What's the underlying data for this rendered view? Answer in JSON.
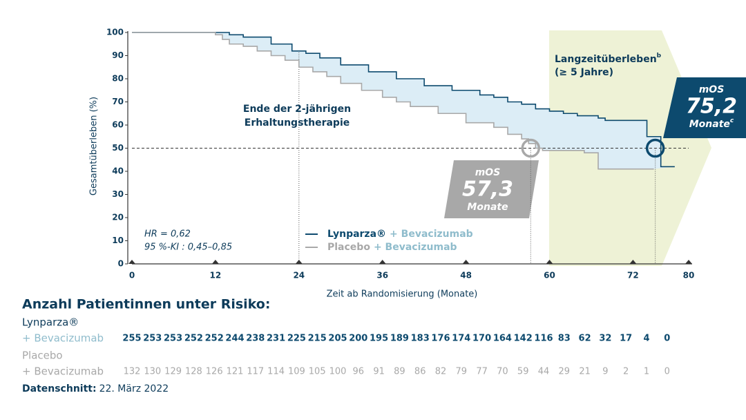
{
  "chart_data": {
    "type": "step",
    "y_label": "Gesamtüberleben (%)",
    "x_label": "Zeit ab Randomisierung (Monate)",
    "xlim": [
      0,
      80
    ],
    "xticks": [
      0,
      12,
      24,
      36,
      48,
      60,
      72,
      80
    ],
    "ylim": [
      0,
      100
    ],
    "yticks": [
      0,
      10,
      20,
      30,
      40,
      50,
      60,
      70,
      80,
      90,
      100
    ],
    "series": [
      {
        "name": "Lynparza®",
        "legend_suffix": "+ Bevacizumab",
        "color": "#0d4a6e",
        "x": [
          0,
          12,
          14,
          16,
          20,
          23,
          25,
          27,
          30,
          34,
          38,
          42,
          46,
          50,
          52,
          54,
          56,
          58,
          60,
          62,
          64,
          67,
          68,
          74,
          76,
          78
        ],
        "values": [
          100,
          100,
          99,
          98,
          95,
          92,
          91,
          89,
          86,
          83,
          80,
          77,
          75,
          73,
          72,
          70,
          69,
          67,
          66,
          65,
          64,
          63,
          62,
          55,
          42,
          42
        ]
      },
      {
        "name": "Placebo",
        "legend_suffix": "+ Bevacizumab",
        "color": "#a8a8a8",
        "x": [
          0,
          12,
          13,
          14,
          16,
          18,
          20,
          22,
          24,
          26,
          28,
          30,
          33,
          36,
          38,
          40,
          44,
          48,
          52,
          54,
          56,
          57,
          58,
          59,
          65,
          67,
          75
        ],
        "values": [
          100,
          99,
          97,
          95,
          94,
          92,
          90,
          88,
          85,
          83,
          81,
          78,
          75,
          72,
          70,
          68,
          65,
          61,
          59,
          56,
          54,
          52,
          50,
          49,
          48,
          41,
          41
        ]
      }
    ],
    "reference_line": 50,
    "annotations": {
      "maintenance_end": {
        "x": 24,
        "lines": [
          "Ende der 2-jährigen",
          "Erhaltungstherapie"
        ]
      },
      "long_term": {
        "text": "Langzeitüberleben",
        "sup": "b",
        "sub": "(≥ 5 Jahre)"
      },
      "hr": "HR = 0,62",
      "ci": "95 %-KI : 0,45–0,85",
      "mos": [
        {
          "heading": "mOS",
          "value": 57.3,
          "value_label": "57,3",
          "unit": "Monate",
          "sup": null
        },
        {
          "heading": "mOS",
          "value": 75.2,
          "value_label": "75,2",
          "unit": "Monate",
          "sup": "c"
        }
      ]
    }
  },
  "risk_table": {
    "title": "Anzahl Patientinnen unter Risiko:",
    "rows": [
      {
        "label": "Lynparza®",
        "label2": "+ Bevacizumab",
        "values": [
          255,
          253,
          253,
          252,
          252,
          244,
          238,
          231,
          225,
          215,
          205,
          200,
          195,
          189,
          183,
          176,
          174,
          170,
          164,
          142,
          116,
          83,
          62,
          32,
          17,
          4,
          0
        ]
      },
      {
        "label": "Placebo",
        "label2": "+ Bevacizumab",
        "values": [
          132,
          130,
          129,
          128,
          126,
          121,
          117,
          114,
          109,
          105,
          100,
          96,
          91,
          89,
          86,
          82,
          79,
          77,
          70,
          59,
          44,
          29,
          21,
          9,
          2,
          1,
          0
        ]
      }
    ],
    "cutoff_label": "Datenschnitt:",
    "cutoff_date": "22. März 2022"
  }
}
